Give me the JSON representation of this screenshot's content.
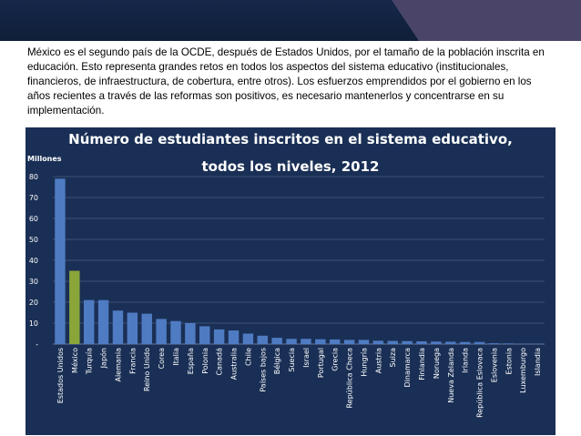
{
  "slide": {
    "intro_text": "México es el segundo país de la OCDE, después de Estados Unidos, por el tamaño de la población inscrita en educación. Esto representa grandes retos en todos los aspectos del sistema educativo (institucionales, financieros, de infraestructura, de cobertura, entre otros).  Los esfuerzos emprendidos por el gobierno en los años recientes a través de las reformas son positivos, es necesario mantenerlos y concentrarse en su implementación.",
    "colors": {
      "background": "#0f1f38",
      "accent": "#4a4568",
      "card": "#ffffff"
    }
  },
  "chart_data": {
    "type": "bar",
    "title_line1": "Número de estudiantes inscritos en el sistema educativo,",
    "title_line2": "todos los niveles, 2012",
    "ylabel": "Millones",
    "ylim": [
      0,
      80
    ],
    "yticks": [
      "-",
      "10",
      "20",
      "30",
      "40",
      "50",
      "60",
      "70",
      "80"
    ],
    "grid": true,
    "categories": [
      "Estados Unidos",
      "México",
      "Turquía",
      "Japón",
      "Alemania",
      "Francia",
      "Reino Unido",
      "Corea",
      "Italia",
      "España",
      "Polonia",
      "Canadá",
      "Australia",
      "Chile",
      "Países bajos",
      "Bélgica",
      "Suecia",
      "Israel",
      "Portugal",
      "Grecia",
      "República Checa",
      "Hungría",
      "Austria",
      "Suiza",
      "Dinamarca",
      "Finlandia",
      "Noruega",
      "Nueva Zelanda",
      "Irlanda",
      "República Eslovaca",
      "Eslovenia",
      "Estonia",
      "Luxemburgo",
      "Islandia"
    ],
    "values": [
      79,
      35,
      21,
      21,
      16,
      15,
      14.5,
      12,
      11,
      10,
      8.5,
      7,
      6.5,
      5,
      4,
      3,
      2.5,
      2.5,
      2.3,
      2.2,
      2,
      2,
      1.6,
      1.5,
      1.4,
      1.3,
      1.2,
      1.1,
      1,
      1,
      0.4,
      0.3,
      0.1,
      0.1
    ],
    "colors": {
      "bar": "#4f7bc2",
      "highlight": "#8aa63a",
      "plot_bg": "#1a2f55",
      "grid": "#4a5f84"
    },
    "highlight_index": 1
  }
}
